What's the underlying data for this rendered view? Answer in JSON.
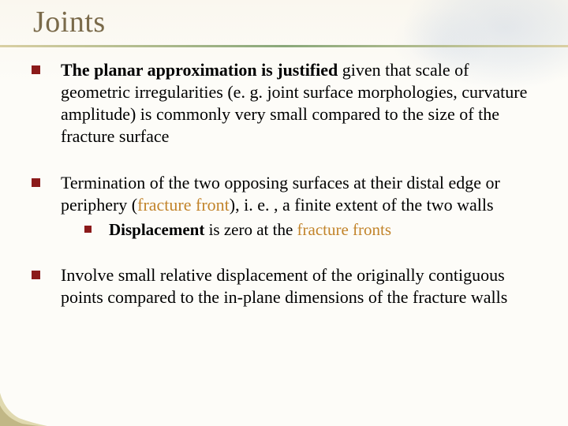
{
  "title": "Joints",
  "title_color": "#7a6a4a",
  "title_fontsize": 38,
  "underline_gradient": [
    "#d9cfa3",
    "#8aa87a",
    "#d9cfa3"
  ],
  "bullet_color": "#8b1a1a",
  "highlight_color": "#c2842b",
  "body_fontsize": 22,
  "sub_fontsize": 21,
  "background_color": "#fdfcf8",
  "corner_color_light": "#e0d9b0",
  "corner_color_dark": "#a89b65",
  "items": [
    {
      "runs": [
        {
          "t": "The planar approximation is justified",
          "bold": true
        },
        {
          "t": " given that scale of geometric irregularities (e. g. joint surface morphologies, curvature amplitude) is commonly very small compared to the size of the fracture surface"
        }
      ]
    },
    {
      "runs": [
        {
          "t": "Termination of the two opposing surfaces at their distal edge or periphery ("
        },
        {
          "t": "fracture front",
          "hl": true
        },
        {
          "t": "), i. e. , a finite extent of the two walls"
        }
      ],
      "sub": {
        "runs": [
          {
            "t": "Displacement",
            "bold": true
          },
          {
            "t": " is zero at the "
          },
          {
            "t": "fracture fronts",
            "hl": true
          }
        ]
      }
    },
    {
      "runs": [
        {
          "t": "Involve small relative displacement of the originally contiguous points compared to the in-plane dimensions of the fracture walls"
        }
      ]
    }
  ]
}
